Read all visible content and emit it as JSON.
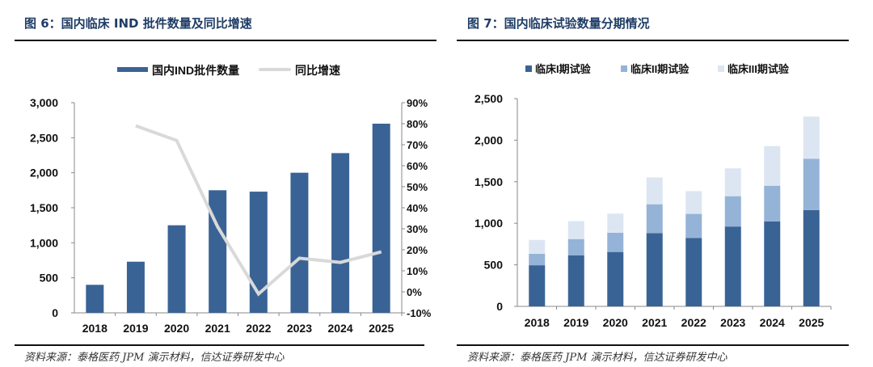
{
  "colors": {
    "bar": "#3a6395",
    "line": "#d9d9d9",
    "phase1": "#3a6395",
    "phase2": "#94b3d7",
    "phase3": "#dce6f2",
    "title": "#1f3d66"
  },
  "chart_data": [
    {
      "type": "bar+line",
      "title": "图 6：国内临床 IND 批件数量及同比增速",
      "categories": [
        "2018",
        "2019",
        "2020",
        "2021",
        "2022",
        "2023",
        "2024",
        "2025"
      ],
      "series": [
        {
          "name": "国内IND批件数量",
          "type": "bar",
          "axis": "left",
          "values": [
            400,
            730,
            1250,
            1750,
            1730,
            2000,
            2280,
            2700
          ]
        },
        {
          "name": "同比增速",
          "type": "line",
          "axis": "right",
          "values": [
            null,
            79,
            72,
            31,
            -1,
            16,
            14,
            19
          ]
        }
      ],
      "ylim": [
        0,
        3000
      ],
      "yticks": [
        "0",
        "500",
        "1,000",
        "1,500",
        "2,000",
        "2,500",
        "3,000"
      ],
      "y2lim": [
        -10,
        90
      ],
      "y2ticks": [
        "-10%",
        "0%",
        "10%",
        "20%",
        "30%",
        "40%",
        "50%",
        "60%",
        "70%",
        "80%",
        "90%"
      ],
      "legend": "top-center",
      "grid": false,
      "source": "资料来源：泰格医药 JPM 演示材料，信达证券研发中心"
    },
    {
      "type": "stacked-bar",
      "title": "图 7：国内临床试验数量分期情况",
      "categories": [
        "2018",
        "2019",
        "2020",
        "2021",
        "2022",
        "2023",
        "2024",
        "2025"
      ],
      "series": [
        {
          "name": "临床I期试验",
          "values": [
            495,
            613,
            655,
            881,
            823,
            961,
            1023,
            1158
          ]
        },
        {
          "name": "临床II期试验",
          "values": [
            137,
            197,
            232,
            348,
            290,
            365,
            429,
            619
          ]
        },
        {
          "name": "临床III期试验",
          "values": [
            168,
            216,
            229,
            323,
            274,
            335,
            477,
            507
          ]
        }
      ],
      "ylim": [
        0,
        2500
      ],
      "yticks": [
        "0",
        "500",
        "1,000",
        "1,500",
        "2,000",
        "2,500"
      ],
      "legend": "top-center",
      "grid": false,
      "source": "资料来源：泰格医药 JPM 演示材料，信达证券研发中心"
    }
  ]
}
